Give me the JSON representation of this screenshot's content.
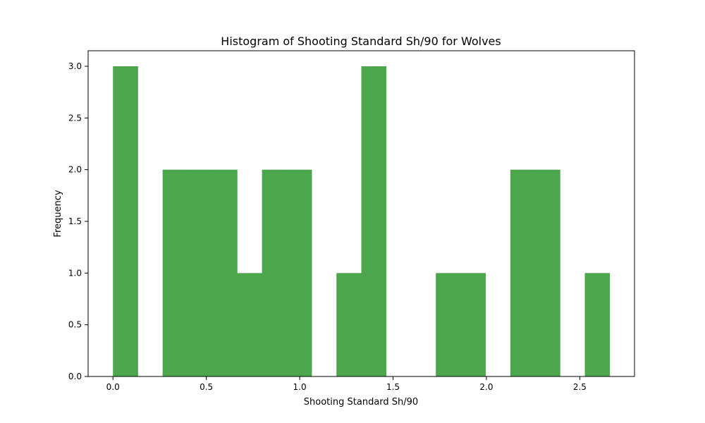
{
  "chart_data": {
    "type": "bar",
    "title": "Histogram of Shooting Standard Sh/90 for Wolves",
    "xlabel": "Shooting Standard Sh/90",
    "ylabel": "Frequency",
    "bin_edges": [
      0.0,
      0.133,
      0.266,
      0.399,
      0.532,
      0.665,
      0.798,
      0.931,
      1.064,
      1.197,
      1.33,
      1.463,
      1.596,
      1.729,
      1.862,
      1.995,
      2.128,
      2.261,
      2.394,
      2.527,
      2.66
    ],
    "counts": [
      3,
      0,
      2,
      2,
      2,
      1,
      2,
      2,
      0,
      1,
      3,
      0,
      0,
      1,
      1,
      0,
      2,
      2,
      0,
      1
    ],
    "xlim": [
      -0.133,
      2.793
    ],
    "ylim": [
      0,
      3.15
    ],
    "x_ticks": [
      0.0,
      0.5,
      1.0,
      1.5,
      2.0,
      2.5
    ],
    "x_tick_labels": [
      "0.0",
      "0.5",
      "1.0",
      "1.5",
      "2.0",
      "2.5"
    ],
    "y_ticks": [
      0.0,
      0.5,
      1.0,
      1.5,
      2.0,
      2.5,
      3.0
    ],
    "y_tick_labels": [
      "0.0",
      "0.5",
      "1.0",
      "1.5",
      "2.0",
      "2.5",
      "3.0"
    ],
    "bar_color": "#4ca64c",
    "grid": false,
    "legend": "none"
  }
}
